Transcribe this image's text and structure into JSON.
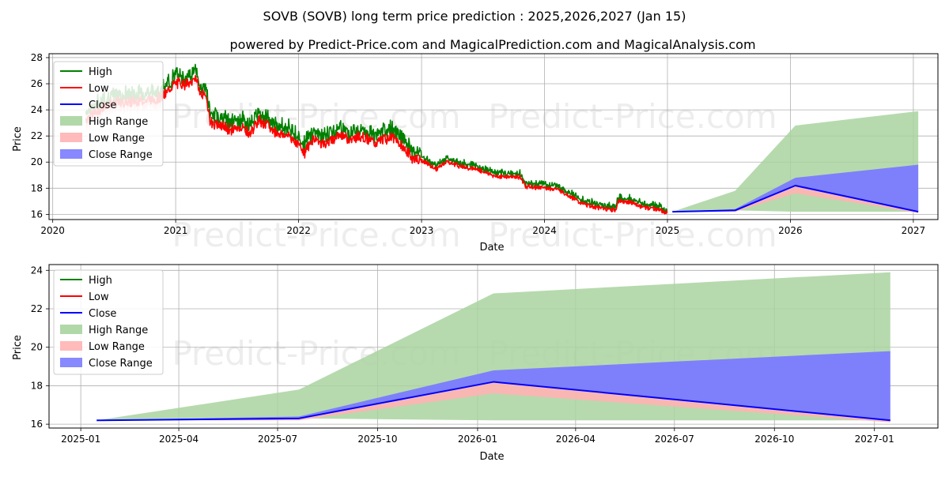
{
  "title": "SOVB (SOVB) long term price prediction : 2025,2026,2027 (Jan 15)",
  "subtitle": "powered by Predict-Price.com and MagicalPrediction.com and MagicalAnalysis.com",
  "watermark": "Predict-Price.com",
  "colors": {
    "high": "#008000",
    "low": "#ff0000",
    "close": "#0000ff",
    "high_range": "#a9d4a0",
    "low_range": "#ffb3b3",
    "close_range": "#7b7bff",
    "grid": "#b0b0b0"
  },
  "legend": [
    "High",
    "Low",
    "Close",
    "High Range",
    "Low Range",
    "Close Range"
  ],
  "chart_data": [
    {
      "type": "line",
      "name": "full-history",
      "xlabel": "Date",
      "ylabel": "Price",
      "xlim": [
        2019.97,
        2027.2
      ],
      "ylim": [
        15.6,
        28.3
      ],
      "xticks": [
        2020,
        2021,
        2022,
        2023,
        2024,
        2025,
        2026,
        2027
      ],
      "xtick_labels": [
        "2020",
        "2021",
        "2022",
        "2023",
        "2024",
        "2025",
        "2026",
        "2027"
      ],
      "yticks": [
        16,
        18,
        20,
        22,
        24,
        26,
        28
      ],
      "legend_position": "upper-left",
      "history_anchors": [
        [
          2020.27,
          23.4
        ],
        [
          2020.45,
          24.6
        ],
        [
          2020.7,
          24.8
        ],
        [
          2020.88,
          25.0
        ],
        [
          2021.0,
          26.2
        ],
        [
          2021.12,
          26.1
        ],
        [
          2021.16,
          26.8
        ],
        [
          2021.2,
          25.3
        ],
        [
          2021.25,
          25.2
        ],
        [
          2021.28,
          23.2
        ],
        [
          2021.35,
          23.0
        ],
        [
          2021.45,
          22.6
        ],
        [
          2021.55,
          22.8
        ],
        [
          2021.6,
          22.3
        ],
        [
          2021.68,
          23.4
        ],
        [
          2021.8,
          22.5
        ],
        [
          2021.95,
          22.0
        ],
        [
          2022.05,
          20.9
        ],
        [
          2022.12,
          22.0
        ],
        [
          2022.2,
          21.5
        ],
        [
          2022.35,
          22.3
        ],
        [
          2022.42,
          21.8
        ],
        [
          2022.5,
          22.2
        ],
        [
          2022.62,
          21.6
        ],
        [
          2022.75,
          22.1
        ],
        [
          2022.85,
          21.3
        ],
        [
          2022.92,
          20.5
        ],
        [
          2023.0,
          20.2
        ],
        [
          2023.12,
          19.5
        ],
        [
          2023.2,
          20.1
        ],
        [
          2023.3,
          19.8
        ],
        [
          2023.45,
          19.5
        ],
        [
          2023.6,
          19.0
        ],
        [
          2023.8,
          18.9
        ],
        [
          2023.85,
          18.2
        ],
        [
          2023.92,
          18.1
        ],
        [
          2024.0,
          18.1
        ],
        [
          2024.1,
          18.0
        ],
        [
          2024.2,
          17.5
        ],
        [
          2024.3,
          16.9
        ],
        [
          2024.42,
          16.6
        ],
        [
          2024.5,
          16.5
        ],
        [
          2024.58,
          16.4
        ],
        [
          2024.6,
          17.1
        ],
        [
          2024.7,
          17.0
        ],
        [
          2024.8,
          16.6
        ],
        [
          2024.9,
          16.5
        ],
        [
          2025.0,
          16.2
        ]
      ],
      "history_note": "approximate daily high/low trace, 2020-2025",
      "forecast": {
        "x": [
          2025.04,
          2025.55,
          2026.04,
          2027.04
        ],
        "close": [
          16.2,
          16.3,
          18.2,
          16.2
        ],
        "high_range": [
          [
            16.2,
            16.2
          ],
          [
            16.3,
            17.8
          ],
          [
            16.2,
            22.8
          ],
          [
            16.2,
            23.9
          ]
        ],
        "low_range": [
          [
            16.2,
            16.2
          ],
          [
            16.2,
            16.3
          ],
          [
            17.6,
            18.2
          ],
          [
            16.1,
            16.2
          ]
        ],
        "close_range": [
          [
            16.2,
            16.2
          ],
          [
            16.3,
            16.4
          ],
          [
            18.2,
            18.8
          ],
          [
            16.2,
            19.8
          ]
        ]
      }
    },
    {
      "type": "area",
      "name": "forecast-zoom",
      "xlabel": "Date",
      "ylabel": "Price",
      "xlim": [
        2024.92,
        2027.16
      ],
      "ylim": [
        15.8,
        24.3
      ],
      "xticks": [
        2025.0,
        2025.247,
        2025.496,
        2025.748,
        2026.0,
        2026.247,
        2026.496,
        2026.748,
        2027.0
      ],
      "xtick_labels": [
        "2025-01",
        "2025-04",
        "2025-07",
        "2025-10",
        "2026-01",
        "2026-04",
        "2026-07",
        "2026-10",
        "2027-01"
      ],
      "yticks": [
        16,
        18,
        20,
        22,
        24
      ],
      "legend_position": "upper-left",
      "x": [
        2025.04,
        2025.55,
        2026.04,
        2027.04
      ],
      "close": [
        16.2,
        16.3,
        18.2,
        16.2
      ],
      "high_range": [
        [
          16.2,
          16.2
        ],
        [
          16.3,
          17.8
        ],
        [
          16.2,
          22.8
        ],
        [
          16.2,
          23.9
        ]
      ],
      "low_range": [
        [
          16.2,
          16.2
        ],
        [
          16.2,
          16.3
        ],
        [
          17.6,
          18.2
        ],
        [
          16.1,
          16.2
        ]
      ],
      "close_range": [
        [
          16.2,
          16.2
        ],
        [
          16.3,
          16.4
        ],
        [
          18.2,
          18.8
        ],
        [
          16.2,
          19.8
        ]
      ]
    }
  ]
}
